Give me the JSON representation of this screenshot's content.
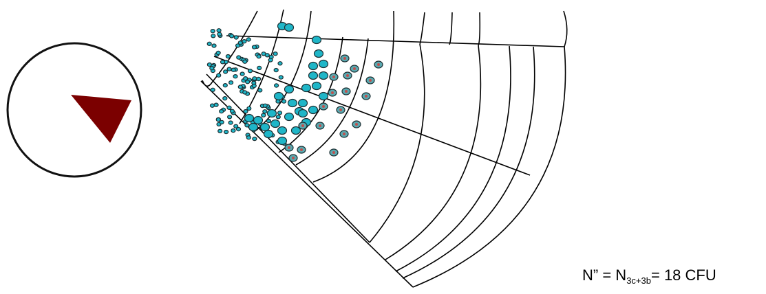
{
  "caption": {
    "prefix": "N” = N",
    "subscript": "3c+3b",
    "suffix": "= 18 CFU"
  },
  "colors": {
    "wedge_fill": "#7b0000",
    "circle_stroke": "#111111",
    "grid_line": "#000000",
    "colony_cyan": "#1fb6c8",
    "colony_outline": "#1d2f33",
    "colony_counted_fill": "#5aa9b0",
    "colony_counted_dot": "#c0504d"
  }
}
